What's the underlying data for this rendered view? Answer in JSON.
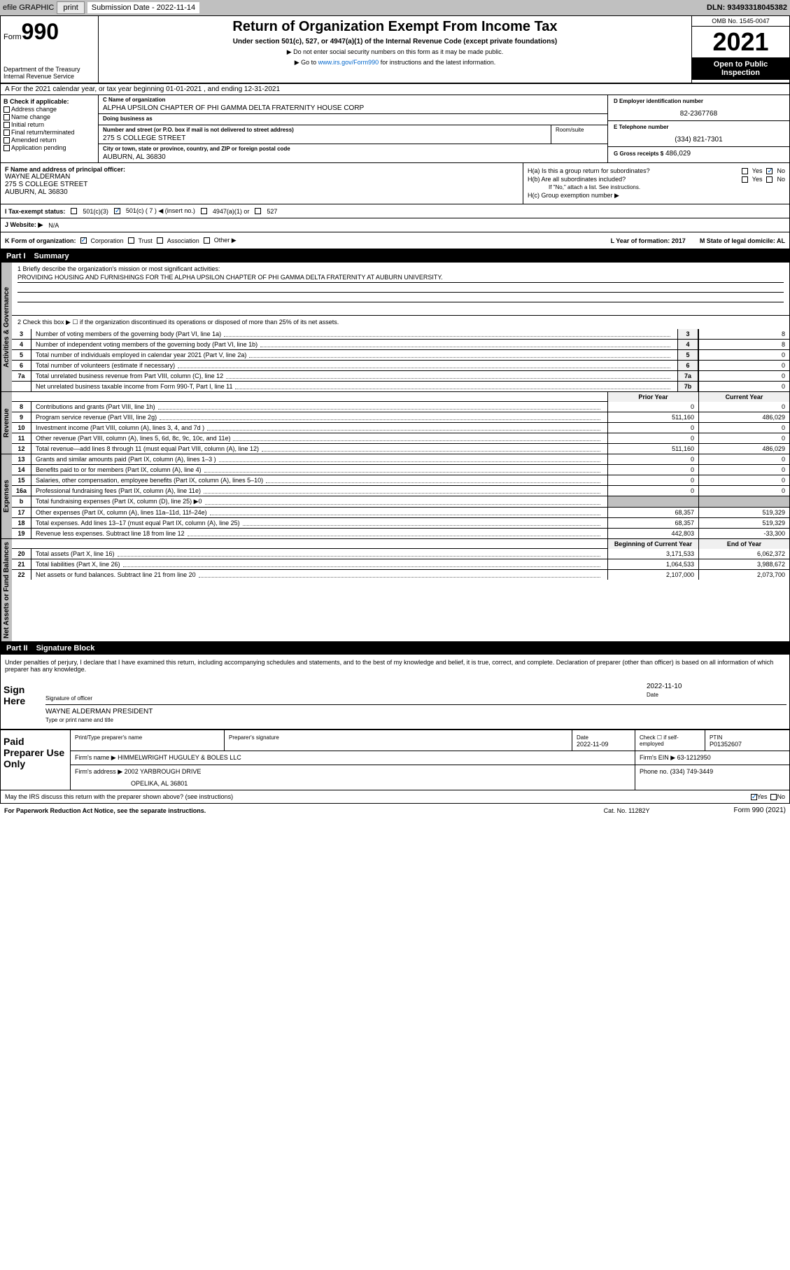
{
  "topbar": {
    "efile": "efile GRAPHIC",
    "print": "print",
    "submission_label": "Submission Date - 2022-11-14",
    "dln": "DLN: 93493318045382"
  },
  "header": {
    "form_prefix": "Form",
    "form_number": "990",
    "dept": "Department of the Treasury\nInternal Revenue Service",
    "title": "Return of Organization Exempt From Income Tax",
    "subtitle": "Under section 501(c), 527, or 4947(a)(1) of the Internal Revenue Code (except private foundations)",
    "note1": "▶ Do not enter social security numbers on this form as it may be made public.",
    "note2_pre": "▶ Go to ",
    "note2_link": "www.irs.gov/Form990",
    "note2_post": " for instructions and the latest information.",
    "omb": "OMB No. 1545-0047",
    "year": "2021",
    "open_public": "Open to Public Inspection"
  },
  "period": {
    "line": "A For the 2021 calendar year, or tax year beginning 01-01-2021   , and ending 12-31-2021"
  },
  "section_b": {
    "label": "B Check if applicable:",
    "addr_change": "Address change",
    "name_change": "Name change",
    "initial": "Initial return",
    "final": "Final return/terminated",
    "amended": "Amended return",
    "app_pending": "Application pending"
  },
  "section_c": {
    "name_label": "C Name of organization",
    "name": "ALPHA UPSILON CHAPTER OF PHI GAMMA DELTA FRATERNITY HOUSE CORP",
    "dba_label": "Doing business as",
    "dba": "",
    "street_label": "Number and street (or P.O. box if mail is not delivered to street address)",
    "street": "275 S COLLEGE STREET",
    "room_label": "Room/suite",
    "city_label": "City or town, state or province, country, and ZIP or foreign postal code",
    "city": "AUBURN, AL  36830"
  },
  "section_d": {
    "ein_label": "D Employer identification number",
    "ein": "82-2367768",
    "phone_label": "E Telephone number",
    "phone": "(334) 821-7301",
    "gross_label": "G Gross receipts $",
    "gross": "486,029"
  },
  "section_f": {
    "label": "F  Name and address of principal officer:",
    "name": "WAYNE ALDERMAN",
    "street": "275 S COLLEGE STREET",
    "city": "AUBURN, AL  36830"
  },
  "section_h": {
    "ha_label": "H(a)  Is this a group return for subordinates?",
    "hb_label": "H(b)  Are all subordinates included?",
    "hb_note": "If \"No,\" attach a list. See instructions.",
    "hc_label": "H(c)  Group exemption number ▶",
    "yes": "Yes",
    "no": "No"
  },
  "section_i": {
    "label": "I  Tax-exempt status:",
    "opt1": "501(c)(3)",
    "opt2": "501(c) ( 7 ) ◀ (insert no.)",
    "opt3": "4947(a)(1) or",
    "opt4": "527"
  },
  "section_j": {
    "label": "J  Website: ▶",
    "value": "N/A"
  },
  "section_k": {
    "label": "K Form of organization:",
    "corp": "Corporation",
    "trust": "Trust",
    "assoc": "Association",
    "other": "Other ▶",
    "l_label": "L Year of formation: 2017",
    "m_label": "M State of legal domicile: AL"
  },
  "part1": {
    "num": "Part I",
    "title": "Summary",
    "side_activities": "Activities & Governance",
    "side_revenue": "Revenue",
    "side_expenses": "Expenses",
    "side_netassets": "Net Assets or Fund Balances",
    "line1_label": "1  Briefly describe the organization's mission or most significant activities:",
    "line1_text": "PROVIDING HOUSING AND FURNISHINGS FOR THE ALPHA UPSILON CHAPTER OF PHI GAMMA DELTA FRATERNITY AT AUBURN UNIVERSITY.",
    "line2": "2   Check this box ▶ ☐  if the organization discontinued its operations or disposed of more than 25% of its net assets.",
    "rows_gov": [
      {
        "n": "3",
        "d": "Number of voting members of the governing body (Part VI, line 1a)",
        "r": "3",
        "v": "8"
      },
      {
        "n": "4",
        "d": "Number of independent voting members of the governing body (Part VI, line 1b)",
        "r": "4",
        "v": "8"
      },
      {
        "n": "5",
        "d": "Total number of individuals employed in calendar year 2021 (Part V, line 2a)",
        "r": "5",
        "v": "0"
      },
      {
        "n": "6",
        "d": "Total number of volunteers (estimate if necessary)",
        "r": "6",
        "v": "0"
      },
      {
        "n": "7a",
        "d": "Total unrelated business revenue from Part VIII, column (C), line 12",
        "r": "7a",
        "v": "0"
      },
      {
        "n": "",
        "d": "Net unrelated business taxable income from Form 990-T, Part I, line 11",
        "r": "7b",
        "v": "0"
      }
    ],
    "col_prior": "Prior Year",
    "col_current": "Current Year",
    "rows_rev": [
      {
        "n": "8",
        "d": "Contributions and grants (Part VIII, line 1h)",
        "p": "0",
        "c": "0"
      },
      {
        "n": "9",
        "d": "Program service revenue (Part VIII, line 2g)",
        "p": "511,160",
        "c": "486,029"
      },
      {
        "n": "10",
        "d": "Investment income (Part VIII, column (A), lines 3, 4, and 7d )",
        "p": "0",
        "c": "0"
      },
      {
        "n": "11",
        "d": "Other revenue (Part VIII, column (A), lines 5, 6d, 8c, 9c, 10c, and 11e)",
        "p": "0",
        "c": "0"
      },
      {
        "n": "12",
        "d": "Total revenue—add lines 8 through 11 (must equal Part VIII, column (A), line 12)",
        "p": "511,160",
        "c": "486,029"
      }
    ],
    "rows_exp": [
      {
        "n": "13",
        "d": "Grants and similar amounts paid (Part IX, column (A), lines 1–3 )",
        "p": "0",
        "c": "0"
      },
      {
        "n": "14",
        "d": "Benefits paid to or for members (Part IX, column (A), line 4)",
        "p": "0",
        "c": "0"
      },
      {
        "n": "15",
        "d": "Salaries, other compensation, employee benefits (Part IX, column (A), lines 5–10)",
        "p": "0",
        "c": "0"
      },
      {
        "n": "16a",
        "d": "Professional fundraising fees (Part IX, column (A), line 11e)",
        "p": "0",
        "c": "0"
      },
      {
        "n": "b",
        "d": "Total fundraising expenses (Part IX, column (D), line 25) ▶0",
        "p": "",
        "c": "",
        "shaded": true
      },
      {
        "n": "17",
        "d": "Other expenses (Part IX, column (A), lines 11a–11d, 11f–24e)",
        "p": "68,357",
        "c": "519,329"
      },
      {
        "n": "18",
        "d": "Total expenses. Add lines 13–17 (must equal Part IX, column (A), line 25)",
        "p": "68,357",
        "c": "519,329"
      },
      {
        "n": "19",
        "d": "Revenue less expenses. Subtract line 18 from line 12",
        "p": "442,803",
        "c": "-33,300"
      }
    ],
    "col_begin": "Beginning of Current Year",
    "col_end": "End of Year",
    "rows_net": [
      {
        "n": "20",
        "d": "Total assets (Part X, line 16)",
        "p": "3,171,533",
        "c": "6,062,372"
      },
      {
        "n": "21",
        "d": "Total liabilities (Part X, line 26)",
        "p": "1,064,533",
        "c": "3,988,672"
      },
      {
        "n": "22",
        "d": "Net assets or fund balances. Subtract line 21 from line 20",
        "p": "2,107,000",
        "c": "2,073,700"
      }
    ]
  },
  "part2": {
    "num": "Part II",
    "title": "Signature Block",
    "penalty": "Under penalties of perjury, I declare that I have examined this return, including accompanying schedules and statements, and to the best of my knowledge and belief, it is true, correct, and complete. Declaration of preparer (other than officer) is based on all information of which preparer has any knowledge.",
    "sign_here": "Sign Here",
    "sig_officer": "Signature of officer",
    "sig_date": "2022-11-10",
    "date_label": "Date",
    "officer_name": "WAYNE ALDERMAN  PRESIDENT",
    "officer_caption": "Type or print name and title",
    "paid_label": "Paid Preparer Use Only",
    "prep_name_label": "Print/Type preparer's name",
    "prep_sig_label": "Preparer's signature",
    "prep_date_label": "Date",
    "prep_date": "2022-11-09",
    "self_emp_label": "Check ☐ if self-employed",
    "ptin_label": "PTIN",
    "ptin": "P01352607",
    "firm_name_label": "Firm's name    ▶",
    "firm_name": "HIMMELWRIGHT HUGULEY & BOLES LLC",
    "firm_ein_label": "Firm's EIN ▶",
    "firm_ein": "63-1212950",
    "firm_addr_label": "Firm's address ▶",
    "firm_addr1": "2002 YARBROUGH DRIVE",
    "firm_addr2": "OPELIKA, AL  36801",
    "firm_phone_label": "Phone no.",
    "firm_phone": "(334) 749-3449",
    "discuss": "May the IRS discuss this return with the preparer shown above? (see instructions)",
    "discuss_yes": "Yes",
    "discuss_no": "No"
  },
  "footer": {
    "left": "For Paperwork Reduction Act Notice, see the separate instructions.",
    "mid": "Cat. No. 11282Y",
    "right": "Form 990 (2021)"
  }
}
